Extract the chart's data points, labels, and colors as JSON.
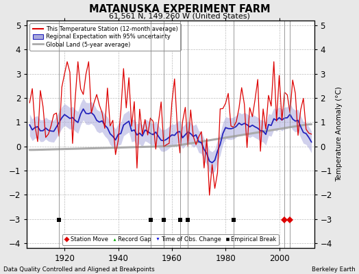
{
  "title": "MATANUSKA EXPERIMENT FARM",
  "subtitle": "61.561 N, 149.260 W (United States)",
  "ylabel": "Temperature Anomaly (°C)",
  "xlabel_note": "Data Quality Controlled and Aligned at Breakpoints",
  "source_note": "Berkeley Earth",
  "ylim": [
    -4.2,
    5.2
  ],
  "xlim": [
    1906,
    2013
  ],
  "yticks": [
    -4,
    -3,
    -2,
    -1,
    0,
    1,
    2,
    3,
    4,
    5
  ],
  "xticks": [
    1920,
    1940,
    1960,
    1980,
    2000
  ],
  "background_color": "#e8e8e8",
  "plot_bg_color": "#ffffff",
  "grid_color": "#bbbbbb",
  "station_color": "#dd0000",
  "regional_line_color": "#2222bb",
  "regional_fill_color": "#aaaadd",
  "global_color": "#aaaaaa",
  "vline_color": "#888888",
  "vline_lw": 0.7,
  "legend_entries": [
    "This Temperature Station (12-month average)",
    "Regional Expectation with 95% uncertainty",
    "Global Land (5-year average)"
  ],
  "markers_box_legend": [
    {
      "label": "Station Move",
      "color": "#dd0000",
      "marker": "D"
    },
    {
      "label": "Record Gap",
      "color": "#00aa00",
      "marker": "^"
    },
    {
      "label": "Time of Obs. Change",
      "color": "#0000dd",
      "marker": "v"
    },
    {
      "label": "Empirical Break",
      "color": "#000000",
      "marker": "s"
    }
  ],
  "empirical_break_years": [
    1918,
    1952,
    1957,
    1963,
    1966,
    1983
  ],
  "station_move_years": [
    2002,
    2004
  ],
  "time_obs_years": [],
  "record_gap_years": [],
  "vlines": [
    1918,
    1952,
    1957,
    1963,
    1966,
    1983,
    2002,
    2004
  ],
  "marker_y": -3.05
}
